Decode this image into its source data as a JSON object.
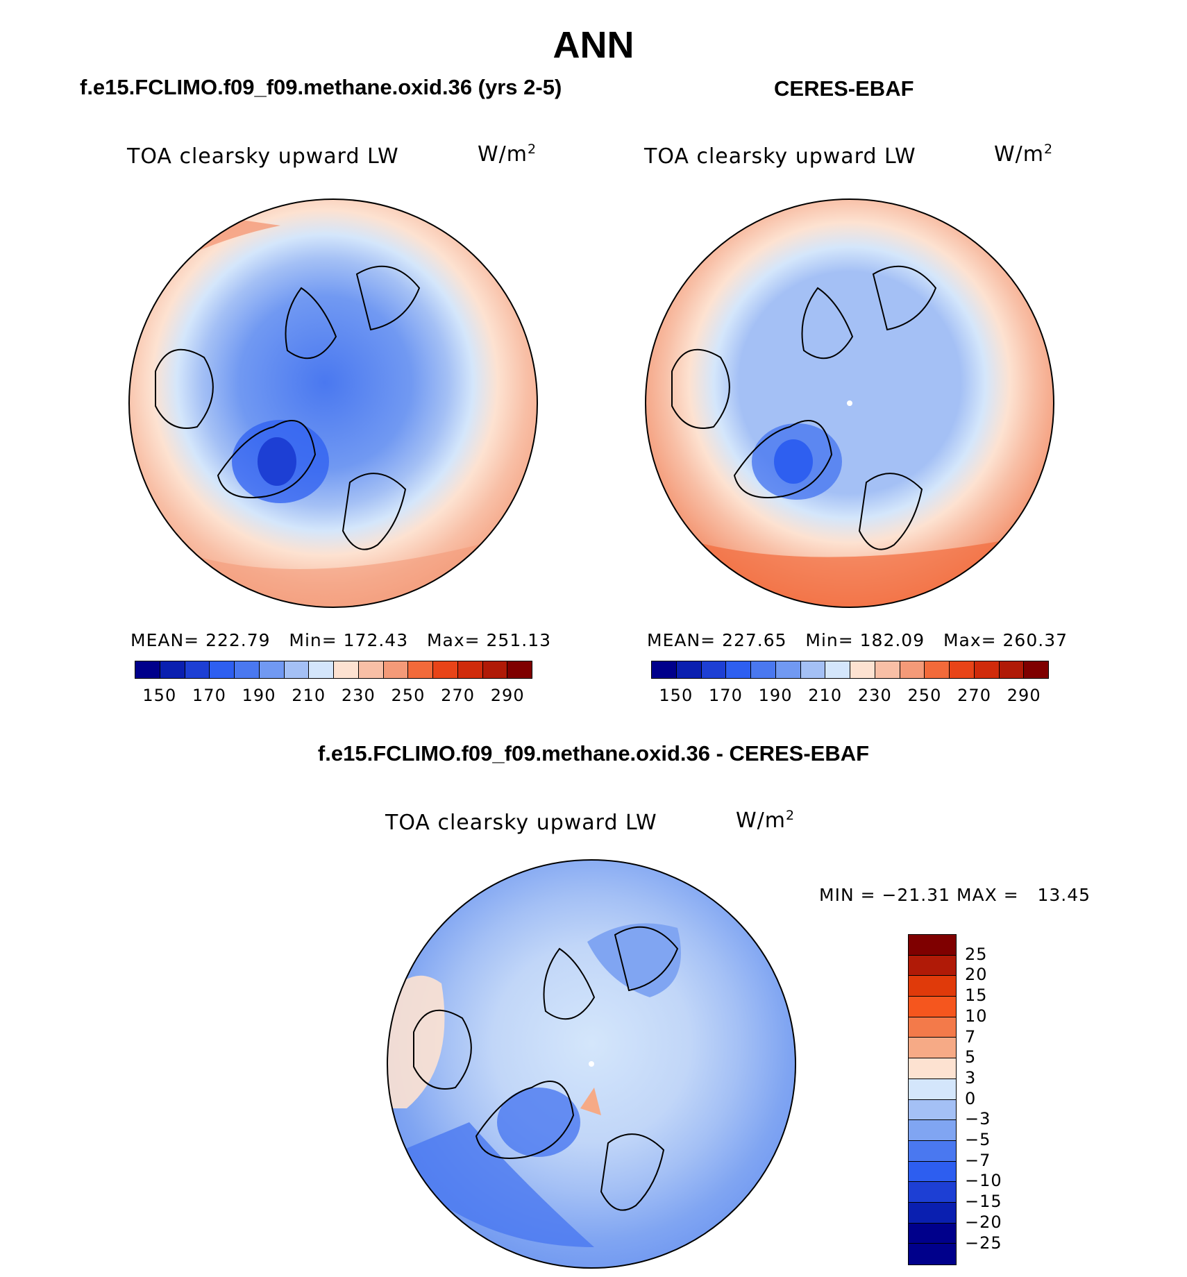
{
  "title": "ANN",
  "panels": {
    "model": {
      "header": "f.e15.FCLIMO.f09_f09.methane.oxid.36 (yrs 2-5)",
      "variable": "TOA clearsky upward LW",
      "units": "W/m",
      "units_sup": "2",
      "stats": "MEAN= 222.79   Min= 172.43   Max= 251.13"
    },
    "obs": {
      "header": "CERES-EBAF",
      "variable": "TOA clearsky upward LW",
      "units": "W/m",
      "units_sup": "2",
      "stats": "MEAN= 227.65   Min= 182.09   Max= 260.37"
    },
    "diff": {
      "header": "f.e15.FCLIMO.f09_f09.methane.oxid.36 - CERES-EBAF",
      "variable": "TOA clearsky upward LW",
      "units": "W/m",
      "units_sup": "2",
      "stats": "MIN = −21.31 MAX =   13.45"
    }
  },
  "chart_data": [
    {
      "type": "heatmap",
      "title": "TOA clearsky upward LW",
      "units": "W/m2",
      "projection": "north polar stereographic",
      "mean": 222.79,
      "min": 172.43,
      "max": 251.13,
      "colorbar_levels": [
        150,
        160,
        170,
        180,
        190,
        200,
        210,
        220,
        230,
        240,
        250,
        260,
        270,
        280,
        290
      ],
      "colorbar_tick_labels": [
        "150",
        "170",
        "190",
        "210",
        "230",
        "250",
        "270",
        "290"
      ]
    },
    {
      "type": "heatmap",
      "title": "TOA clearsky upward LW",
      "units": "W/m2",
      "projection": "north polar stereographic",
      "mean": 227.65,
      "min": 182.09,
      "max": 260.37,
      "colorbar_levels": [
        150,
        160,
        170,
        180,
        190,
        200,
        210,
        220,
        230,
        240,
        250,
        260,
        270,
        280,
        290
      ],
      "colorbar_tick_labels": [
        "150",
        "170",
        "190",
        "210",
        "230",
        "250",
        "270",
        "290"
      ]
    },
    {
      "type": "heatmap",
      "title": "TOA clearsky upward LW",
      "units": "W/m2",
      "projection": "north polar stereographic",
      "min": -21.31,
      "max": 13.45,
      "colorbar_levels": [
        "25",
        "20",
        "15",
        "10",
        "7",
        "5",
        "3",
        "0",
        "−3",
        "−5",
        "−7",
        "−10",
        "−15",
        "−20",
        "−25"
      ]
    }
  ],
  "colors": {
    "abs_scale": [
      "#00008b",
      "#0a1fb0",
      "#1d3fd4",
      "#2e5ff0",
      "#4a78f0",
      "#7199f2",
      "#a4c0f5",
      "#d4e6fb",
      "#fde2d1",
      "#f8bfa6",
      "#f49a78",
      "#f26a3a",
      "#e84418",
      "#d02b0b",
      "#b01a07",
      "#7f0000"
    ],
    "diff_scale": [
      "#7f0000",
      "#b01a07",
      "#e03a0a",
      "#f5561e",
      "#f37a4a",
      "#f6aa86",
      "#fde2d1",
      "#d4e6fb",
      "#a4c0f5",
      "#80a5f2",
      "#4a78f0",
      "#2d5ef0",
      "#1d3fd4",
      "#0a1fb0",
      "#00008b"
    ]
  }
}
